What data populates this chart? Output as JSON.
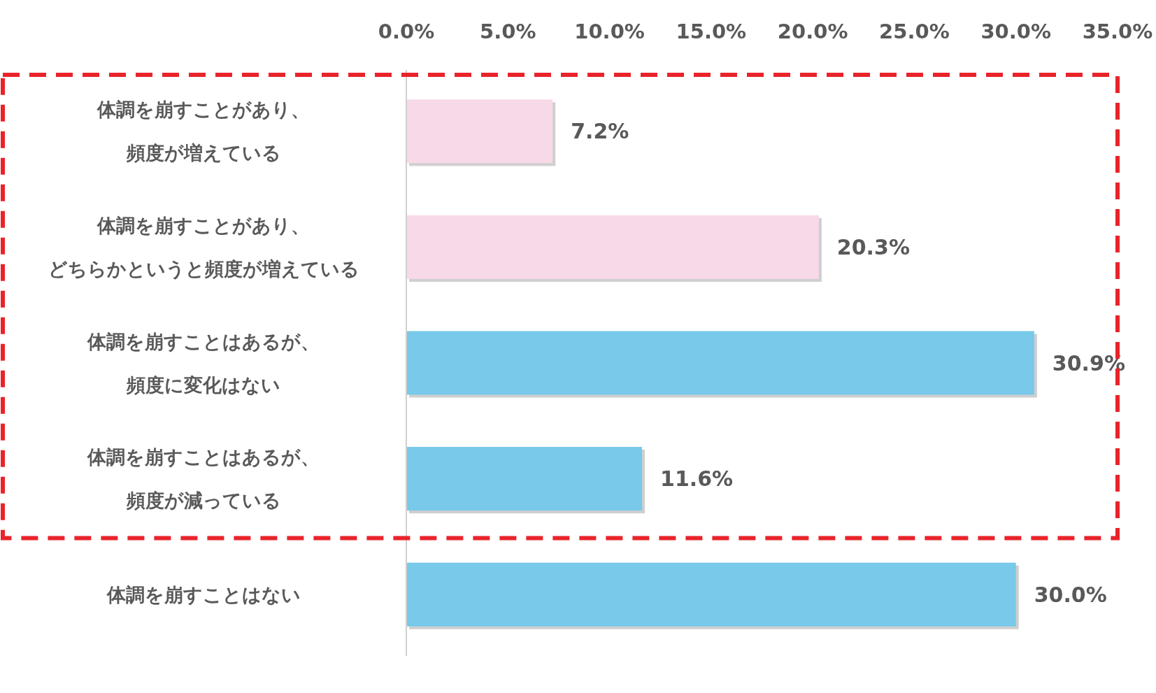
{
  "chart_data": {
    "type": "bar",
    "orientation": "horizontal",
    "categories": [
      "体調を崩すことがあり、頻度が増えている",
      "体調を崩すことがあり、どちらかというと頻度が増えている",
      "体調を崩すことはあるが、頻度に変化はない",
      "体調を崩すことはあるが、頻度が減っている",
      "体調を崩すことはない"
    ],
    "values": [
      7.2,
      20.3,
      30.9,
      11.6,
      30.0
    ],
    "value_labels": [
      "7.2%",
      "20.3%",
      "30.9%",
      "11.6%",
      "30.0%"
    ],
    "colors": [
      "#f8d9e8",
      "#f8d9e8",
      "#78c9ea",
      "#78c9ea",
      "#78c9ea"
    ],
    "xlim": [
      0,
      35
    ],
    "xticks": [
      {
        "value": 0,
        "label": "0.0%"
      },
      {
        "value": 5,
        "label": "5.0%"
      },
      {
        "value": 10,
        "label": "10.0%"
      },
      {
        "value": 15,
        "label": "15.0%"
      },
      {
        "value": 20,
        "label": "20.0%"
      },
      {
        "value": 25,
        "label": "25.0%"
      },
      {
        "value": 30,
        "label": "30.0%"
      },
      {
        "value": 35,
        "label": "35.0%"
      }
    ],
    "grid": false
  }
}
